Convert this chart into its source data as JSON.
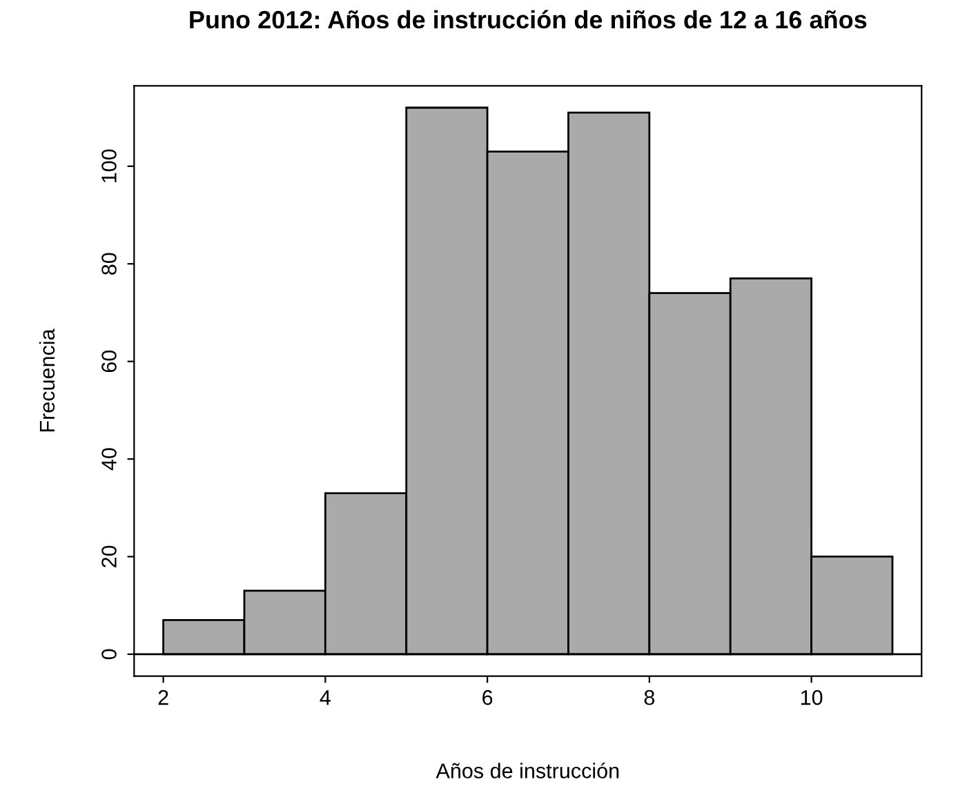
{
  "chart_data": {
    "type": "histogram",
    "title": "Puno 2012: Años de instrucción de niños de 12 a 16 años",
    "xlabel": "Años de instrucción",
    "ylabel": "Frecuencia",
    "bins": [
      2,
      3,
      4,
      5,
      6,
      7,
      8,
      9,
      10,
      11
    ],
    "values": [
      7,
      13,
      33,
      112,
      103,
      111,
      74,
      77,
      20
    ],
    "color": "#aaaaaa",
    "xlim": [
      1.64,
      11.36
    ],
    "ylim": [
      -4.48,
      116.48
    ],
    "xticks": [
      2,
      4,
      6,
      8,
      10
    ],
    "yticks": [
      0,
      20,
      40,
      60,
      80,
      100
    ],
    "ref_lines": [
      {
        "axis": "y",
        "value": 0,
        "color": "#000000"
      }
    ],
    "grid": false
  }
}
